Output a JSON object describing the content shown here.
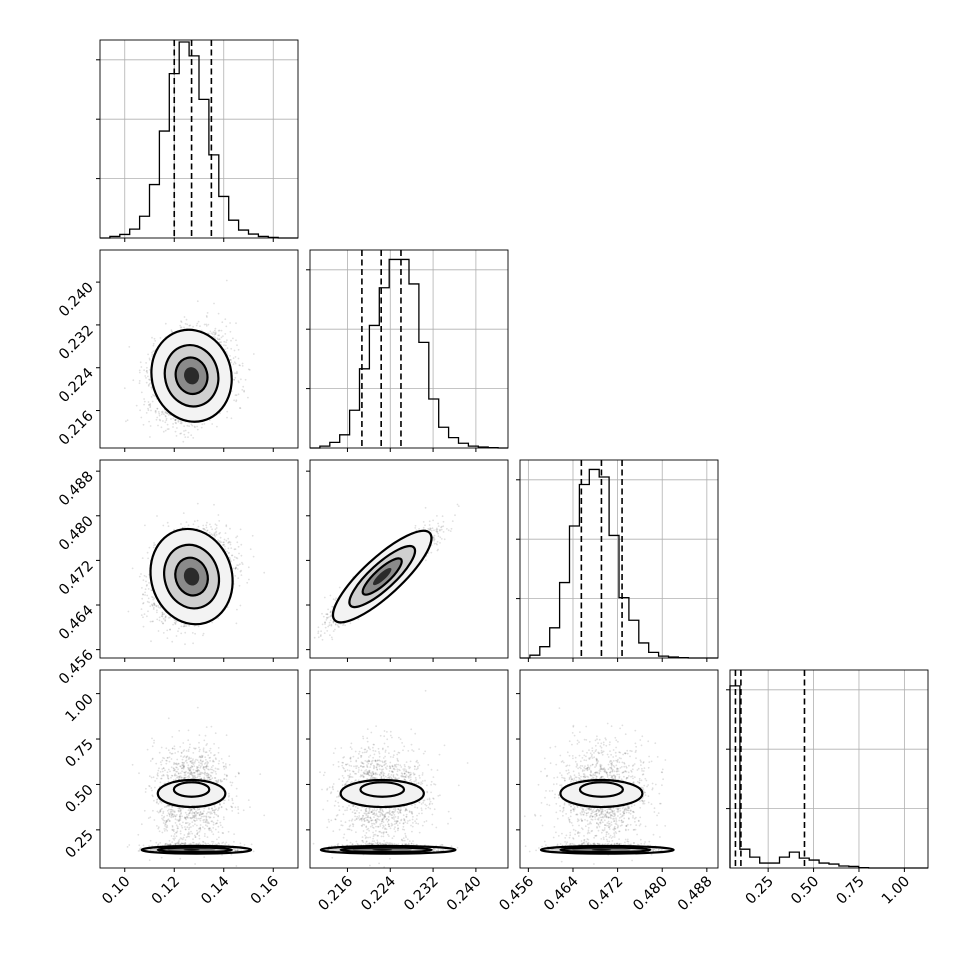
{
  "chart_data": {
    "type": "corner",
    "parameters": [
      {
        "range": [
          0.09,
          0.17
        ],
        "ticks": [
          0.1,
          0.12,
          0.14,
          0.16
        ],
        "tick_labels": [
          "0.10",
          "0.12",
          "0.14",
          "0.16"
        ],
        "mean": 0.127,
        "sd": 0.0065,
        "quantiles": [
          0.12,
          0.127,
          0.135
        ]
      },
      {
        "range": [
          0.209,
          0.246
        ],
        "ticks": [
          0.216,
          0.224,
          0.232,
          0.24
        ],
        "tick_labels": [
          "0.216",
          "0.224",
          "0.232",
          "0.240"
        ],
        "mean": 0.2225,
        "sd": 0.0037,
        "quantiles": [
          0.2187,
          0.2223,
          0.226
        ]
      },
      {
        "range": [
          0.4545,
          0.49
        ],
        "ticks": [
          0.456,
          0.464,
          0.472,
          0.48,
          0.488
        ],
        "tick_labels": [
          "0.456",
          "0.464",
          "0.472",
          "0.480",
          "0.488"
        ],
        "mean": 0.4691,
        "sd": 0.0035,
        "quantiles": [
          0.4655,
          0.4691,
          0.4728
        ]
      },
      {
        "range": [
          0.04,
          1.13
        ],
        "ticks": [
          0.25,
          0.5,
          0.75,
          1.0
        ],
        "tick_labels": [
          "0.25",
          "0.50",
          "0.75",
          "1.00"
        ],
        "mean": 0.14,
        "sd": 0.0,
        "quantiles": [
          0.07,
          0.1,
          0.45
        ]
      }
    ],
    "histograms": [
      {
        "param": 0,
        "bins": [
          0.09,
          0.094,
          0.098,
          0.102,
          0.106,
          0.11,
          0.114,
          0.118,
          0.122,
          0.126,
          0.13,
          0.134,
          0.138,
          0.142,
          0.146,
          0.15,
          0.154,
          0.158,
          0.162,
          0.166,
          0.17
        ],
        "counts": [
          0,
          8,
          18,
          45,
          110,
          270,
          540,
          830,
          990,
          920,
          700,
          420,
          210,
          90,
          40,
          20,
          8,
          3,
          0,
          0
        ],
        "peak": 1000
      },
      {
        "param": 1,
        "bins": [
          0.209,
          0.21085,
          0.2127,
          0.21455,
          0.2164,
          0.21825,
          0.2201,
          0.22195,
          0.2238,
          0.22565,
          0.2275,
          0.22935,
          0.2312,
          0.23305,
          0.2349,
          0.23675,
          0.2386,
          0.24045,
          0.2423,
          0.24415,
          0.246
        ],
        "counts": [
          0,
          10,
          30,
          70,
          200,
          420,
          650,
          850,
          1000,
          1000,
          870,
          560,
          260,
          110,
          55,
          25,
          10,
          5,
          2,
          0
        ],
        "peak": 1050
      },
      {
        "param": 2,
        "bins": [
          0.4545,
          0.456275,
          0.45805,
          0.459825,
          0.4616,
          0.463375,
          0.46515,
          0.466925,
          0.4687,
          0.470475,
          0.47225,
          0.474025,
          0.4758,
          0.477575,
          0.47935,
          0.481125,
          0.4829,
          0.484675,
          0.48645,
          0.488225,
          0.49
        ],
        "counts": [
          0,
          15,
          60,
          160,
          400,
          700,
          920,
          1000,
          960,
          650,
          320,
          200,
          80,
          30,
          10,
          5,
          2,
          0,
          0,
          0
        ],
        "peak": 1050
      },
      {
        "param": 3,
        "bins": [
          0.04,
          0.0945,
          0.149,
          0.2035,
          0.258,
          0.3125,
          0.367,
          0.4215,
          0.476,
          0.5305,
          0.585,
          0.6395,
          0.694,
          0.7485,
          0.803,
          0.8575,
          0.912,
          0.9665,
          1.021,
          1.0755,
          1.13
        ],
        "counts": [
          920,
          95,
          55,
          25,
          25,
          55,
          80,
          50,
          40,
          25,
          20,
          10,
          8,
          2,
          0,
          0,
          0,
          0,
          0,
          0
        ],
        "peak": 1000
      }
    ],
    "scatter": [
      {
        "x": 0,
        "y": 1,
        "correlation": 0.2
      },
      {
        "x": 0,
        "y": 2,
        "correlation": 0.25
      },
      {
        "x": 1,
        "y": 2,
        "correlation": 0.93
      },
      {
        "x": 0,
        "y": 3,
        "correlation": 0.0,
        "bimodal": true
      },
      {
        "x": 1,
        "y": 3,
        "correlation": 0.0,
        "bimodal": true
      },
      {
        "x": 2,
        "y": 3,
        "correlation": 0.0,
        "bimodal": true
      }
    ],
    "bimodal_y": {
      "low_mean": 0.14,
      "low_sd": 0.025,
      "high_mean": 0.45,
      "high_sd": 0.12,
      "low_fraction": 0.55
    },
    "grid": true,
    "title": "",
    "xlabel": "",
    "ylabel": ""
  }
}
